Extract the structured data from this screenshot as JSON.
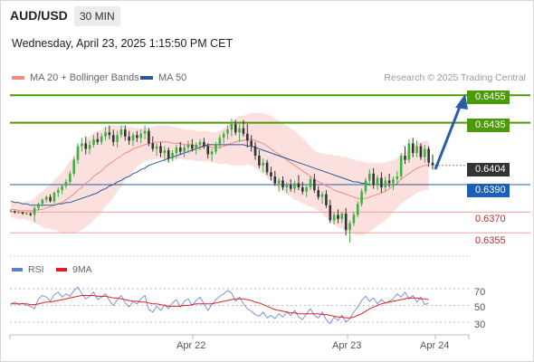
{
  "header": {
    "symbol": "AUD/USD",
    "timeframe": "30 MIN",
    "datetime": "Wednesday, April 23, 2025 1:15:50 PM CET"
  },
  "legend": {
    "ma20_label": "MA 20 + Bollinger Bands",
    "ma20_color": "#f28b82",
    "ma50_label": "MA 50",
    "ma50_color": "#2b5797"
  },
  "credit": "Research © 2025 Trading Central",
  "levels": {
    "r2": "0.6455",
    "r1": "0.6435",
    "last": "0.6404",
    "pivot": "0.6390",
    "s1": "0.6370",
    "s2": "0.6355",
    "resistance_color": "#4c9a0a",
    "pivot_color": "#1e5fb4",
    "support_color": "#c62828",
    "last_color": "#333333"
  },
  "rsi": {
    "rsi_label": "RSI",
    "rsi_color": "#5b7fd6",
    "ma_label": "9MA",
    "ma_color": "#e02020",
    "ticks": [
      "70",
      "50",
      "30"
    ]
  },
  "xaxis": {
    "labels": [
      "Apr 22",
      "Apr 23",
      "Apr 24"
    ]
  },
  "price_scale": {
    "y_min": 0.634,
    "y_max": 0.6465
  },
  "series": {
    "candles": [
      [
        0.6371,
        0.6372,
        0.637,
        0.6371
      ],
      [
        0.6371,
        0.6371,
        0.6369,
        0.637
      ],
      [
        0.637,
        0.6371,
        0.6369,
        0.637
      ],
      [
        0.637,
        0.637,
        0.6368,
        0.6369
      ],
      [
        0.6369,
        0.637,
        0.6368,
        0.6369
      ],
      [
        0.6369,
        0.637,
        0.6367,
        0.6368
      ],
      [
        0.6368,
        0.6374,
        0.6363,
        0.6373
      ],
      [
        0.6373,
        0.6377,
        0.6371,
        0.6376
      ],
      [
        0.6376,
        0.638,
        0.6374,
        0.6379
      ],
      [
        0.6379,
        0.6382,
        0.6377,
        0.6381
      ],
      [
        0.6381,
        0.6383,
        0.6377,
        0.6378
      ],
      [
        0.6378,
        0.6385,
        0.6376,
        0.6384
      ],
      [
        0.6384,
        0.6388,
        0.6381,
        0.6386
      ],
      [
        0.6386,
        0.639,
        0.6383,
        0.6389
      ],
      [
        0.6389,
        0.6394,
        0.6387,
        0.6392
      ],
      [
        0.6392,
        0.64,
        0.639,
        0.6398
      ],
      [
        0.6398,
        0.641,
        0.6396,
        0.6408
      ],
      [
        0.6408,
        0.642,
        0.6405,
        0.6418
      ],
      [
        0.6418,
        0.6424,
        0.6414,
        0.642
      ],
      [
        0.642,
        0.6425,
        0.6412,
        0.6416
      ],
      [
        0.6416,
        0.6422,
        0.6412,
        0.6419
      ],
      [
        0.6419,
        0.6426,
        0.6417,
        0.6423
      ],
      [
        0.6423,
        0.6428,
        0.6419,
        0.6421
      ],
      [
        0.6421,
        0.6427,
        0.6419,
        0.6425
      ],
      [
        0.6425,
        0.6432,
        0.6422,
        0.6428
      ],
      [
        0.6428,
        0.6433,
        0.6423,
        0.6426
      ],
      [
        0.6426,
        0.643,
        0.6418,
        0.6421
      ],
      [
        0.6421,
        0.6429,
        0.6417,
        0.6426
      ],
      [
        0.6426,
        0.6433,
        0.6424,
        0.643
      ],
      [
        0.643,
        0.6433,
        0.6422,
        0.6425
      ],
      [
        0.6425,
        0.6429,
        0.6419,
        0.6422
      ],
      [
        0.6422,
        0.6428,
        0.6418,
        0.6426
      ],
      [
        0.6426,
        0.6429,
        0.6421,
        0.6424
      ],
      [
        0.6424,
        0.643,
        0.642,
        0.6427
      ],
      [
        0.6427,
        0.6433,
        0.6423,
        0.6429
      ],
      [
        0.6429,
        0.6431,
        0.6418,
        0.642
      ],
      [
        0.642,
        0.6425,
        0.6414,
        0.6416
      ],
      [
        0.6416,
        0.642,
        0.6411,
        0.6418
      ],
      [
        0.6418,
        0.6421,
        0.641,
        0.6413
      ],
      [
        0.6413,
        0.6418,
        0.6407,
        0.6415
      ],
      [
        0.6415,
        0.6417,
        0.6406,
        0.6409
      ],
      [
        0.6409,
        0.6415,
        0.6407,
        0.6413
      ],
      [
        0.6413,
        0.6419,
        0.6409,
        0.6417
      ],
      [
        0.6417,
        0.6421,
        0.6412,
        0.6414
      ],
      [
        0.6414,
        0.6419,
        0.641,
        0.6417
      ],
      [
        0.6417,
        0.6422,
        0.6413,
        0.6419
      ],
      [
        0.6419,
        0.6423,
        0.6414,
        0.6416
      ],
      [
        0.6416,
        0.6421,
        0.6412,
        0.6419
      ],
      [
        0.6419,
        0.6423,
        0.6415,
        0.6421
      ],
      [
        0.6421,
        0.6424,
        0.6416,
        0.6418
      ],
      [
        0.6418,
        0.642,
        0.6409,
        0.6412
      ],
      [
        0.6412,
        0.6416,
        0.6407,
        0.6414
      ],
      [
        0.6414,
        0.6421,
        0.6412,
        0.6419
      ],
      [
        0.6419,
        0.6426,
        0.6416,
        0.6424
      ],
      [
        0.6424,
        0.6429,
        0.642,
        0.6427
      ],
      [
        0.6427,
        0.6433,
        0.6423,
        0.643
      ],
      [
        0.643,
        0.6438,
        0.6425,
        0.6434
      ],
      [
        0.6434,
        0.6437,
        0.6426,
        0.6428
      ],
      [
        0.6428,
        0.6434,
        0.6421,
        0.6431
      ],
      [
        0.6431,
        0.6437,
        0.6425,
        0.6427
      ],
      [
        0.6427,
        0.6434,
        0.6417,
        0.6422
      ],
      [
        0.6422,
        0.6426,
        0.6414,
        0.6418
      ],
      [
        0.6418,
        0.6421,
        0.6408,
        0.6411
      ],
      [
        0.6411,
        0.6415,
        0.6402,
        0.6404
      ],
      [
        0.6404,
        0.6409,
        0.6399,
        0.6406
      ],
      [
        0.6406,
        0.6408,
        0.6397,
        0.6399
      ],
      [
        0.6399,
        0.6403,
        0.6393,
        0.6396
      ],
      [
        0.6396,
        0.64,
        0.6389,
        0.6391
      ],
      [
        0.6391,
        0.6395,
        0.6385,
        0.6393
      ],
      [
        0.6393,
        0.6396,
        0.6386,
        0.6388
      ],
      [
        0.6388,
        0.6392,
        0.6384,
        0.639
      ],
      [
        0.639,
        0.6394,
        0.6385,
        0.6387
      ],
      [
        0.6387,
        0.6393,
        0.6384,
        0.6391
      ],
      [
        0.6391,
        0.6397,
        0.6386,
        0.6388
      ],
      [
        0.6388,
        0.6392,
        0.6383,
        0.6385
      ],
      [
        0.6385,
        0.639,
        0.6381,
        0.6388
      ],
      [
        0.6388,
        0.6396,
        0.6386,
        0.6394
      ],
      [
        0.6394,
        0.6398,
        0.6384,
        0.6386
      ],
      [
        0.6386,
        0.6389,
        0.6379,
        0.6381
      ],
      [
        0.6381,
        0.6385,
        0.6376,
        0.6383
      ],
      [
        0.6383,
        0.6386,
        0.6373,
        0.6375
      ],
      [
        0.6375,
        0.6379,
        0.6362,
        0.6364
      ],
      [
        0.6364,
        0.637,
        0.6361,
        0.6368
      ],
      [
        0.6368,
        0.6372,
        0.6362,
        0.6365
      ],
      [
        0.6365,
        0.637,
        0.6362,
        0.6369
      ],
      [
        0.6369,
        0.6373,
        0.6353,
        0.6357
      ],
      [
        0.6357,
        0.6364,
        0.6348,
        0.6362
      ],
      [
        0.6362,
        0.637,
        0.636,
        0.6368
      ],
      [
        0.6368,
        0.6378,
        0.6366,
        0.6376
      ],
      [
        0.6376,
        0.6387,
        0.6374,
        0.6385
      ],
      [
        0.6385,
        0.6395,
        0.6383,
        0.6393
      ],
      [
        0.6393,
        0.6401,
        0.6389,
        0.6398
      ],
      [
        0.6398,
        0.6402,
        0.6387,
        0.639
      ],
      [
        0.639,
        0.6397,
        0.6386,
        0.6395
      ],
      [
        0.6395,
        0.6399,
        0.6384,
        0.6388
      ],
      [
        0.6388,
        0.6396,
        0.6385,
        0.6393
      ],
      [
        0.6393,
        0.6398,
        0.6388,
        0.6391
      ],
      [
        0.6391,
        0.6396,
        0.6386,
        0.6394
      ],
      [
        0.6394,
        0.64,
        0.639,
        0.6396
      ],
      [
        0.6396,
        0.6413,
        0.6394,
        0.6411
      ],
      [
        0.6411,
        0.6418,
        0.6405,
        0.6408
      ],
      [
        0.6408,
        0.6423,
        0.6406,
        0.642
      ],
      [
        0.642,
        0.6424,
        0.641,
        0.6413
      ],
      [
        0.6413,
        0.6422,
        0.641,
        0.6418
      ],
      [
        0.6418,
        0.642,
        0.6408,
        0.641
      ],
      [
        0.641,
        0.6419,
        0.6406,
        0.6416
      ],
      [
        0.6416,
        0.6418,
        0.6403,
        0.6406
      ],
      [
        0.6406,
        0.6412,
        0.6401,
        0.6404
      ]
    ],
    "ma20": [
      0.6372,
      0.6372,
      0.6371,
      0.6371,
      0.6371,
      0.6371,
      0.6371,
      0.6372,
      0.6372,
      0.6373,
      0.6374,
      0.6375,
      0.6376,
      0.6377,
      0.6379,
      0.6381,
      0.6383,
      0.6386,
      0.6388,
      0.6391,
      0.6393,
      0.6396,
      0.6398,
      0.64,
      0.6403,
      0.6405,
      0.6407,
      0.6409,
      0.6411,
      0.6413,
      0.6414,
      0.6416,
      0.6417,
      0.6418,
      0.6419,
      0.642,
      0.642,
      0.6421,
      0.6421,
      0.6421,
      0.6421,
      0.642,
      0.642,
      0.642,
      0.6419,
      0.6419,
      0.6419,
      0.6418,
      0.6418,
      0.6418,
      0.6418,
      0.6417,
      0.6417,
      0.6417,
      0.6418,
      0.6419,
      0.642,
      0.6421,
      0.6422,
      0.6422,
      0.6423,
      0.6423,
      0.6422,
      0.6421,
      0.642,
      0.6418,
      0.6416,
      0.6414,
      0.6412,
      0.641,
      0.6408,
      0.6406,
      0.6404,
      0.6402,
      0.64,
      0.6398,
      0.6396,
      0.6394,
      0.6392,
      0.6391,
      0.6389,
      0.6388,
      0.6386,
      0.6385,
      0.6384,
      0.6383,
      0.6382,
      0.6381,
      0.638,
      0.638,
      0.638,
      0.6381,
      0.6382,
      0.6383,
      0.6384,
      0.6385,
      0.6387,
      0.6389,
      0.6391,
      0.6394,
      0.6396,
      0.6398,
      0.64,
      0.6402,
      0.6403,
      0.6404,
      0.6404
    ],
    "ma50": [
      0.6378,
      0.6377,
      0.6377,
      0.6376,
      0.6376,
      0.6375,
      0.6375,
      0.6375,
      0.6375,
      0.6375,
      0.6375,
      0.6375,
      0.6376,
      0.6376,
      0.6377,
      0.6377,
      0.6378,
      0.6379,
      0.638,
      0.6381,
      0.6382,
      0.6383,
      0.6384,
      0.6386,
      0.6387,
      0.6389,
      0.639,
      0.6392,
      0.6393,
      0.6395,
      0.6396,
      0.6398,
      0.6399,
      0.6401,
      0.6402,
      0.6404,
      0.6405,
      0.6406,
      0.6407,
      0.6408,
      0.6409,
      0.641,
      0.6411,
      0.6412,
      0.6413,
      0.6414,
      0.6415,
      0.6416,
      0.6417,
      0.6418,
      0.6419,
      0.6419,
      0.6419,
      0.6419,
      0.6419,
      0.6419,
      0.6419,
      0.6419,
      0.6419,
      0.6419,
      0.6418,
      0.6418,
      0.6417,
      0.6416,
      0.6415,
      0.6414,
      0.6413,
      0.6412,
      0.6411,
      0.641,
      0.6409,
      0.6408,
      0.6407,
      0.6406,
      0.6405,
      0.6404,
      0.6403,
      0.6402,
      0.6401,
      0.64,
      0.6399,
      0.6398,
      0.6397,
      0.6396,
      0.6395,
      0.6394,
      0.6393,
      0.6392,
      0.6392,
      0.6391,
      0.6391,
      0.639,
      0.639,
      0.639,
      0.639,
      0.639,
      0.639,
      0.639,
      0.639,
      0.639,
      0.639,
      0.639,
      0.639,
      0.639,
      0.639,
      0.639,
      0.639
    ],
    "bb_width": [
      0.0006,
      0.0006,
      0.0006,
      0.0006,
      0.0007,
      0.0007,
      0.0009,
      0.0011,
      0.0013,
      0.0015,
      0.0016,
      0.0018,
      0.002,
      0.0022,
      0.0024,
      0.0026,
      0.0028,
      0.003,
      0.0031,
      0.0032,
      0.0032,
      0.0032,
      0.0031,
      0.003,
      0.0029,
      0.0028,
      0.0026,
      0.0024,
      0.0022,
      0.002,
      0.0018,
      0.0016,
      0.0014,
      0.0013,
      0.0012,
      0.0012,
      0.0012,
      0.0012,
      0.0012,
      0.0012,
      0.0012,
      0.0012,
      0.0012,
      0.0011,
      0.0011,
      0.0011,
      0.0011,
      0.0011,
      0.0011,
      0.0011,
      0.0011,
      0.0011,
      0.0011,
      0.0012,
      0.0013,
      0.0014,
      0.0016,
      0.0017,
      0.0018,
      0.0018,
      0.0018,
      0.0019,
      0.002,
      0.0021,
      0.0022,
      0.0023,
      0.0024,
      0.0024,
      0.0025,
      0.0025,
      0.0025,
      0.0025,
      0.0025,
      0.0024,
      0.0024,
      0.0023,
      0.0022,
      0.0021,
      0.0021,
      0.0022,
      0.0023,
      0.0024,
      0.0025,
      0.0026,
      0.0026,
      0.0027,
      0.0027,
      0.0027,
      0.0027,
      0.0027,
      0.0026,
      0.0025,
      0.0024,
      0.0023,
      0.0022,
      0.0021,
      0.002,
      0.0019,
      0.0018,
      0.0018,
      0.0018,
      0.0018,
      0.0018,
      0.0018,
      0.0018,
      0.0018,
      0.0018
    ],
    "rsi_values": [
      52,
      54,
      51,
      53,
      50,
      49,
      46,
      58,
      62,
      60,
      55,
      63,
      66,
      60,
      64,
      61,
      68,
      72,
      64,
      58,
      61,
      66,
      57,
      60,
      64,
      56,
      50,
      57,
      62,
      53,
      48,
      55,
      52,
      58,
      62,
      45,
      42,
      49,
      44,
      51,
      46,
      53,
      57,
      48,
      55,
      58,
      50,
      56,
      60,
      52,
      44,
      51,
      57,
      61,
      64,
      68,
      65,
      55,
      60,
      52,
      46,
      43,
      39,
      37,
      42,
      35,
      38,
      34,
      40,
      36,
      42,
      38,
      44,
      36,
      33,
      40,
      46,
      38,
      35,
      42,
      33,
      28,
      36,
      32,
      38,
      30,
      34,
      42,
      48,
      56,
      61,
      55,
      59,
      52,
      57,
      53,
      55,
      58,
      64,
      60,
      66,
      58,
      62,
      54,
      60,
      51,
      53
    ],
    "rsi_ma": [
      52,
      52,
      52,
      52,
      52,
      51,
      51,
      52,
      53,
      54,
      54,
      55,
      56,
      57,
      58,
      59,
      60,
      61,
      62,
      62,
      62,
      62,
      61,
      61,
      61,
      60,
      59,
      59,
      58,
      57,
      56,
      55,
      55,
      54,
      54,
      53,
      52,
      52,
      51,
      50,
      49,
      49,
      49,
      49,
      50,
      50,
      51,
      52,
      52,
      52,
      52,
      52,
      53,
      54,
      55,
      56,
      57,
      58,
      58,
      58,
      57,
      56,
      54,
      53,
      51,
      49,
      47,
      45,
      44,
      43,
      42,
      41,
      41,
      40,
      40,
      40,
      40,
      40,
      40,
      39,
      39,
      38,
      37,
      36,
      36,
      35,
      35,
      36,
      38,
      40,
      43,
      46,
      48,
      50,
      52,
      53,
      54,
      55,
      56,
      57,
      58,
      59,
      59,
      59,
      58,
      58,
      57
    ]
  }
}
